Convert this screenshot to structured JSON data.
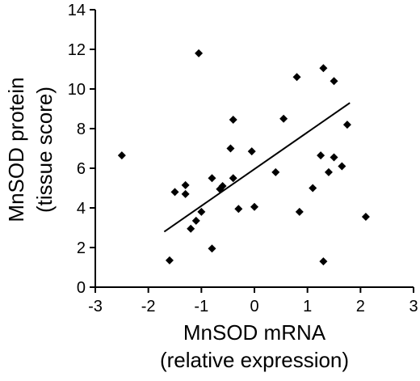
{
  "chart_data": {
    "type": "scatter",
    "title": "",
    "xlabel": "MnSOD mRNA",
    "xlabel_line2": "(relative expression)",
    "ylabel": "MnSOD protein",
    "ylabel_line2": "(tissue score)",
    "xlim": [
      -3,
      3
    ],
    "ylim": [
      0,
      14
    ],
    "xticks": [
      -3,
      -2,
      -1,
      0,
      1,
      2,
      3
    ],
    "yticks": [
      0,
      2,
      4,
      6,
      8,
      10,
      12,
      14
    ],
    "xtick_labels": [
      "-3",
      "-2",
      "-1",
      "0",
      "1",
      "2",
      "3"
    ],
    "ytick_labels": [
      "0",
      "2",
      "4",
      "6",
      "8",
      "10",
      "12",
      "14"
    ],
    "grid": false,
    "series": [
      {
        "points": [
          {
            "x": -2.5,
            "y": 6.65
          },
          {
            "x": -1.6,
            "y": 1.35
          },
          {
            "x": -1.5,
            "y": 4.8
          },
          {
            "x": -1.3,
            "y": 4.7
          },
          {
            "x": -1.3,
            "y": 5.15
          },
          {
            "x": -1.2,
            "y": 2.95
          },
          {
            "x": -1.1,
            "y": 3.35
          },
          {
            "x": -1.05,
            "y": 11.8
          },
          {
            "x": -1.0,
            "y": 3.8
          },
          {
            "x": -0.8,
            "y": 1.95
          },
          {
            "x": -0.8,
            "y": 5.5
          },
          {
            "x": -0.65,
            "y": 4.95
          },
          {
            "x": -0.6,
            "y": 5.1
          },
          {
            "x": -0.45,
            "y": 7.0
          },
          {
            "x": -0.4,
            "y": 5.5
          },
          {
            "x": -0.4,
            "y": 8.45
          },
          {
            "x": -0.3,
            "y": 3.95
          },
          {
            "x": -0.05,
            "y": 6.85
          },
          {
            "x": 0.0,
            "y": 4.05
          },
          {
            "x": 0.4,
            "y": 5.8
          },
          {
            "x": 0.55,
            "y": 8.5
          },
          {
            "x": 0.8,
            "y": 10.6
          },
          {
            "x": 0.85,
            "y": 3.8
          },
          {
            "x": 1.1,
            "y": 5.0
          },
          {
            "x": 1.25,
            "y": 6.65
          },
          {
            "x": 1.3,
            "y": 11.05
          },
          {
            "x": 1.3,
            "y": 1.3
          },
          {
            "x": 1.4,
            "y": 5.8
          },
          {
            "x": 1.5,
            "y": 6.55
          },
          {
            "x": 1.5,
            "y": 10.4
          },
          {
            "x": 1.65,
            "y": 6.1
          },
          {
            "x": 1.75,
            "y": 8.2
          },
          {
            "x": 2.1,
            "y": 3.55
          }
        ]
      }
    ],
    "fit_line": {
      "x1": -1.7,
      "y1": 2.8,
      "x2": 1.8,
      "y2": 9.3
    },
    "marker": "diamond",
    "color": "#000000"
  }
}
